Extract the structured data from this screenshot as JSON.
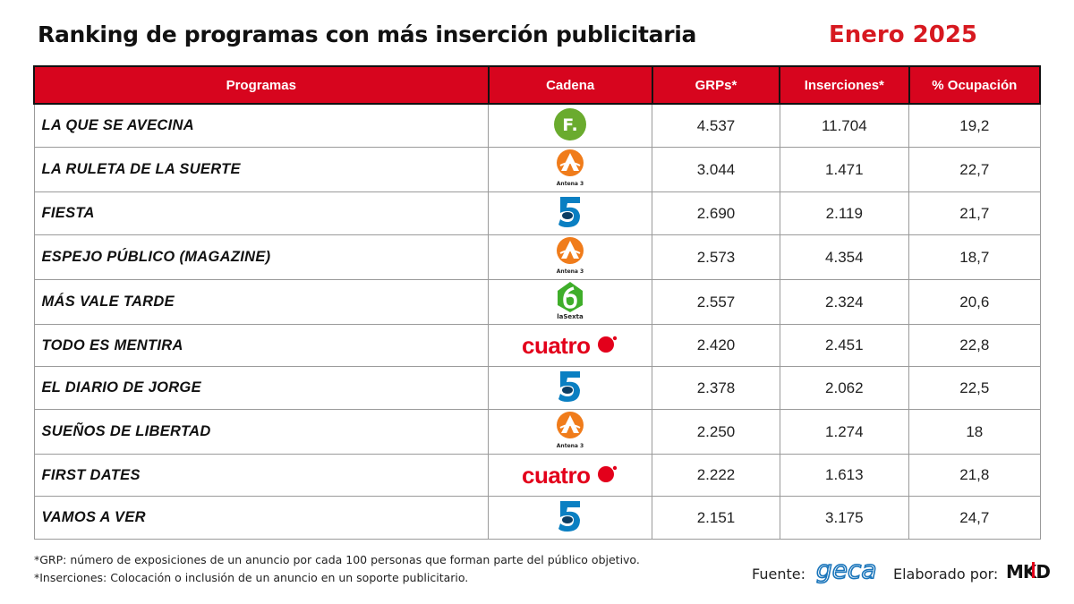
{
  "title": "Ranking de programas con más inserción publicitaria",
  "period": "Enero 2025",
  "columns": [
    "Programas",
    "Cadena",
    "GRPs*",
    "Inserciones*",
    "% Ocupación"
  ],
  "rows": [
    {
      "program": "LA QUE SE AVECINA",
      "channel_icon": "fdf-logo-icon",
      "grps": "4.537",
      "inserciones": "11.704",
      "ocupacion": "19,2"
    },
    {
      "program": "LA RULETA DE LA SUERTE",
      "channel_icon": "antena3-logo-icon",
      "grps": "3.044",
      "inserciones": "1.471",
      "ocupacion": "22,7"
    },
    {
      "program": "FIESTA",
      "channel_icon": "telecinco-logo-icon",
      "grps": "2.690",
      "inserciones": "2.119",
      "ocupacion": "21,7"
    },
    {
      "program": "ESPEJO PÚBLICO (MAGAZINE)",
      "channel_icon": "antena3-logo-icon",
      "grps": "2.573",
      "inserciones": "4.354",
      "ocupacion": "18,7"
    },
    {
      "program": "MÁS VALE TARDE",
      "channel_icon": "lasexta-logo-icon",
      "grps": "2.557",
      "inserciones": "2.324",
      "ocupacion": "20,6"
    },
    {
      "program": "TODO ES MENTIRA",
      "channel_icon": "cuatro-logo-icon",
      "grps": "2.420",
      "inserciones": "2.451",
      "ocupacion": "22,8"
    },
    {
      "program": "EL DIARIO DE JORGE",
      "channel_icon": "telecinco-logo-icon",
      "grps": "2.378",
      "inserciones": "2.062",
      "ocupacion": "22,5"
    },
    {
      "program": "SUEÑOS DE LIBERTAD",
      "channel_icon": "antena3-logo-icon",
      "grps": "2.250",
      "inserciones": "1.274",
      "ocupacion": "18"
    },
    {
      "program": "FIRST DATES",
      "channel_icon": "cuatro-logo-icon",
      "grps": "2.222",
      "inserciones": "1.613",
      "ocupacion": "21,8"
    },
    {
      "program": "VAMOS A VER",
      "channel_icon": "telecinco-logo-icon",
      "grps": "2.151",
      "inserciones": "3.175",
      "ocupacion": "24,7"
    }
  ],
  "logo_text": {
    "antena3": "Antena 3",
    "lasexta": "laSexta",
    "cuatro": "cuatro",
    "fdf": "F.",
    "geca": "geca",
    "mkd": "MKD"
  },
  "footnotes": [
    "*GRP: número de exposiciones de un anuncio por cada 100 personas que forman parte del público objetivo.",
    "*Inserciones: Colocación o inclusión de un anuncio en un soporte publicitario."
  ],
  "source_label": "Fuente:",
  "made_by_label": "Elaborado por:",
  "colors": {
    "header_red": "#d7051e",
    "period_red": "#d71920",
    "fdf_green": "#6aab2e",
    "antena3_orange": "#f07c1b",
    "telecinco_blue": "#0a7fc2",
    "lasexta_green": "#3fae2a",
    "cuatro_red": "#e3001b",
    "geca_blue": "#1a75bb"
  }
}
